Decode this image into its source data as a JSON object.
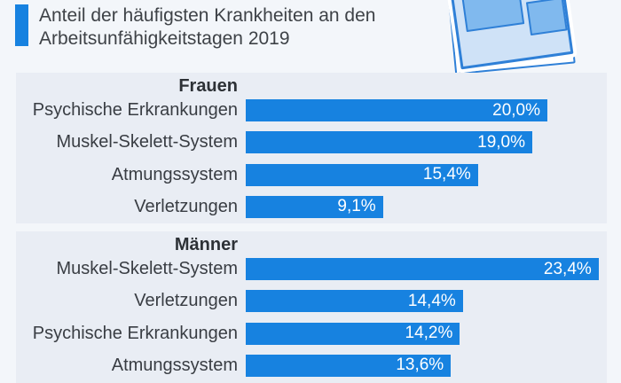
{
  "header": {
    "title": "Anteil der häufigsten Krankheiten an den Arbeitsunfähigkeitstagen 2019",
    "accent_color": "#1782e0"
  },
  "icon": {
    "name": "infographic-newspaper-icon"
  },
  "chart_data": {
    "type": "bar",
    "orientation": "horizontal",
    "title": "Anteil der häufigsten Krankheiten an den Arbeitsunfähigkeitstagen 2019",
    "unit": "%",
    "max_value": 23.4,
    "bar_color": "#1782e0",
    "value_labels_inside_bars": true,
    "groups": [
      {
        "header": "Frauen",
        "rows": [
          {
            "label": "Psychische Erkrankungen",
            "value": 20.0,
            "display": "20,0%"
          },
          {
            "label": "Muskel-Skelett-System",
            "value": 19.0,
            "display": "19,0%"
          },
          {
            "label": "Atmungssystem",
            "value": 15.4,
            "display": "15,4%"
          },
          {
            "label": "Verletzungen",
            "value": 9.1,
            "display": "9,1%"
          }
        ]
      },
      {
        "header": "Männer",
        "rows": [
          {
            "label": "Muskel-Skelett-System",
            "value": 23.4,
            "display": "23,4%"
          },
          {
            "label": "Verletzungen",
            "value": 14.4,
            "display": "14,4%"
          },
          {
            "label": "Psychische Erkrankungen",
            "value": 14.2,
            "display": "14,2%"
          },
          {
            "label": "Atmungssystem",
            "value": 13.6,
            "display": "13,6%"
          }
        ]
      }
    ]
  }
}
